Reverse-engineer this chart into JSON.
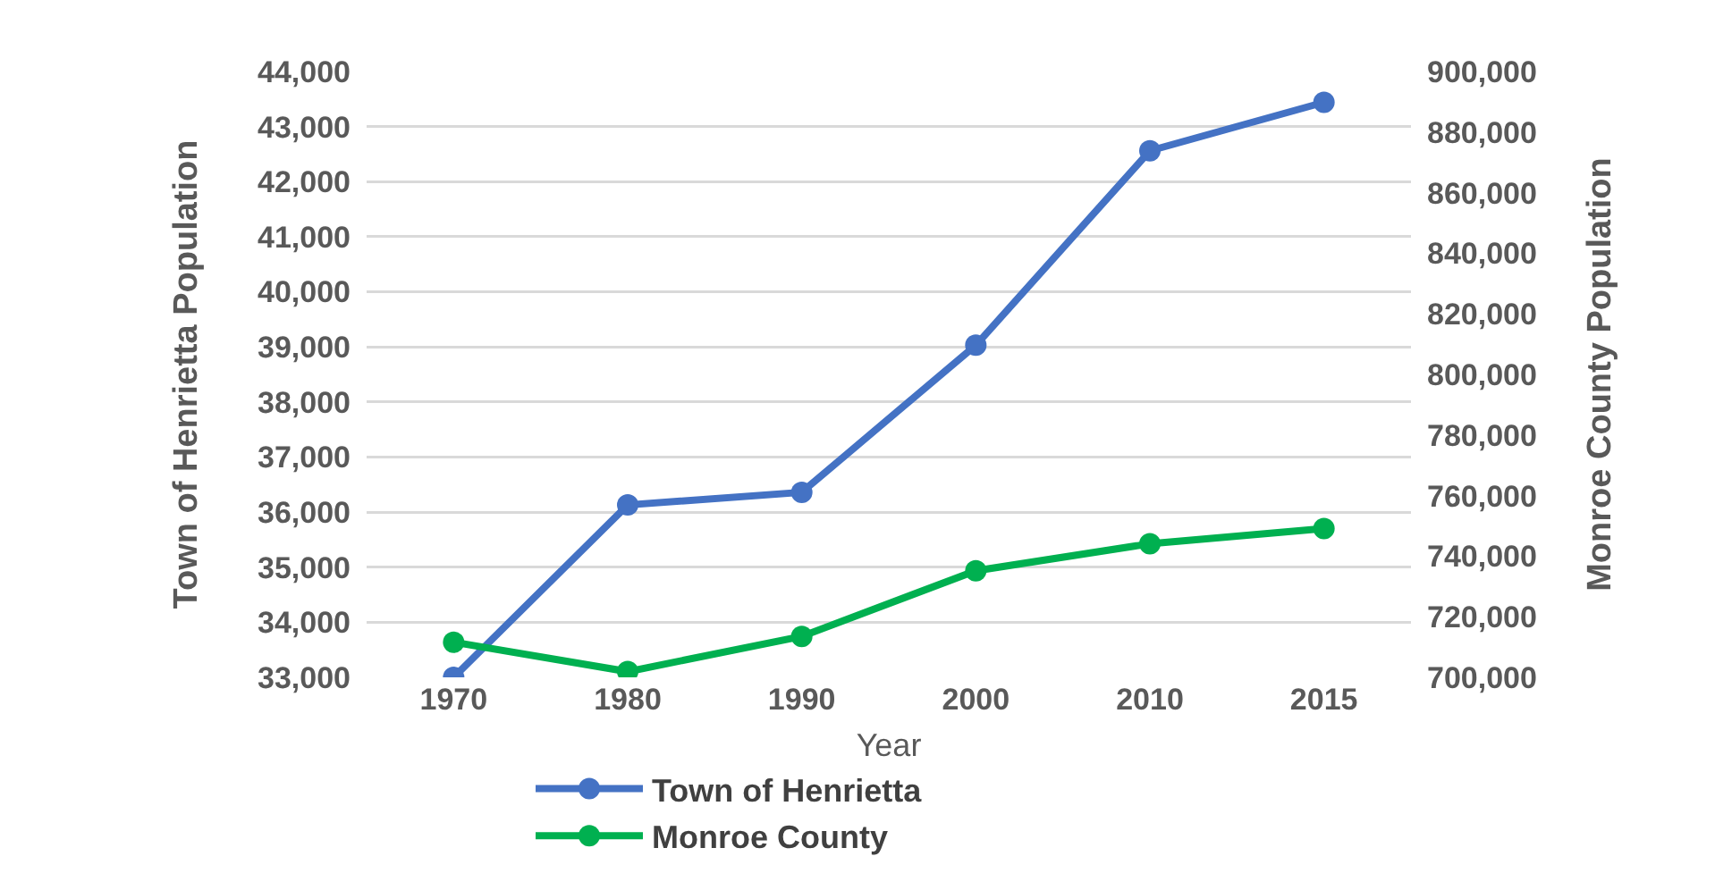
{
  "chart_data": {
    "type": "line",
    "xlabel": "Year",
    "ylabel": "Town of Henrietta Population",
    "y2label": "Monroe County Population",
    "categories": [
      "1970",
      "1980",
      "1990",
      "2000",
      "2010",
      "2015"
    ],
    "series": [
      {
        "name": "Town of Henrietta",
        "color": "#4472c4",
        "values": [
          33000,
          36130,
          36360,
          39030,
          42560,
          43440
        ]
      },
      {
        "name": "Monroe County",
        "color": "#00b050",
        "axis": "y2",
        "values": [
          711600,
          701900,
          713500,
          735200,
          744100,
          749100
        ]
      }
    ],
    "ylim": [
      33000,
      44000
    ],
    "yticks": [
      {
        "value": 33000,
        "label": "33,000"
      },
      {
        "value": 34000,
        "label": "34,000"
      },
      {
        "value": 35000,
        "label": "35,000"
      },
      {
        "value": 36000,
        "label": "36,000"
      },
      {
        "value": 37000,
        "label": "37,000"
      },
      {
        "value": 38000,
        "label": "38,000"
      },
      {
        "value": 39000,
        "label": "39,000"
      },
      {
        "value": 40000,
        "label": "40,000"
      },
      {
        "value": 41000,
        "label": "41,000"
      },
      {
        "value": 42000,
        "label": "42,000"
      },
      {
        "value": 43000,
        "label": "43,000"
      },
      {
        "value": 44000,
        "label": "44,000"
      }
    ],
    "y2lim": [
      700000,
      900000
    ],
    "y2ticks": [
      {
        "value": 700000,
        "label": "700,000"
      },
      {
        "value": 720000,
        "label": "720,000"
      },
      {
        "value": 740000,
        "label": "740,000"
      },
      {
        "value": 760000,
        "label": "760,000"
      },
      {
        "value": 780000,
        "label": "780,000"
      },
      {
        "value": 800000,
        "label": "800,000"
      },
      {
        "value": 820000,
        "label": "820,000"
      },
      {
        "value": 840000,
        "label": "840,000"
      },
      {
        "value": 860000,
        "label": "860,000"
      },
      {
        "value": 880000,
        "label": "880,000"
      },
      {
        "value": 900000,
        "label": "900,000"
      }
    ],
    "grid": "y",
    "legend": "bottom",
    "marker": "circle",
    "line_style": "solid"
  }
}
